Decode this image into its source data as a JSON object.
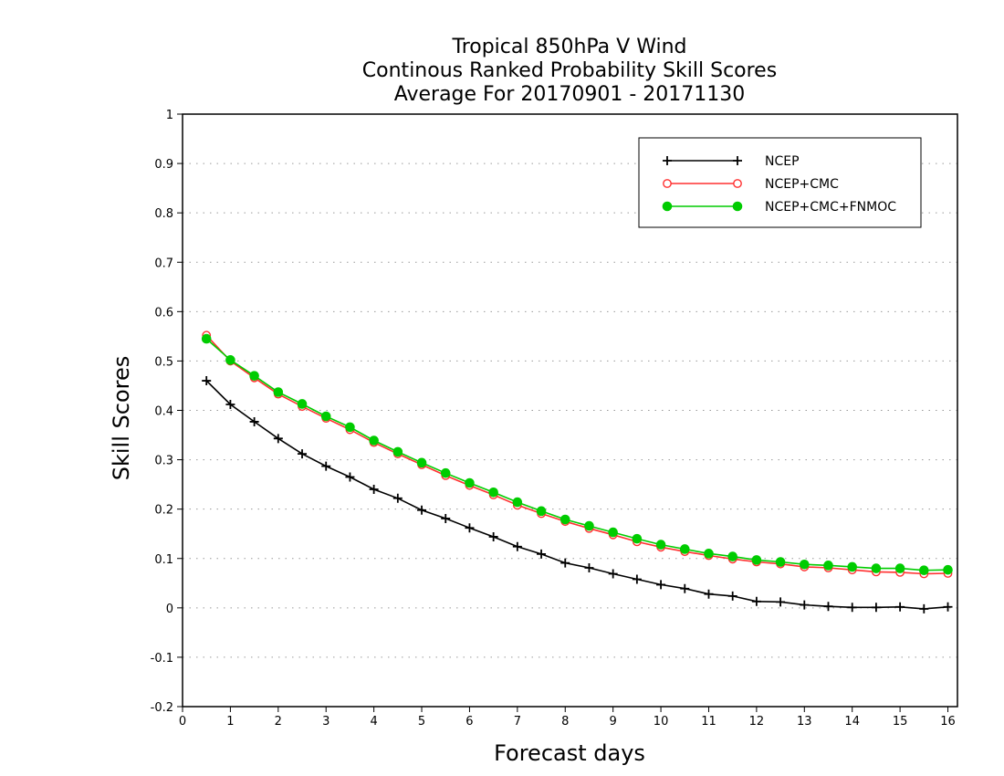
{
  "chart_data": {
    "type": "line",
    "title_lines": [
      "Tropical 850hPa V Wind",
      "Continous Ranked Probability Skill Scores",
      "Average For 20170901 - 20171130"
    ],
    "xlabel": "Forecast days",
    "ylabel": "Skill Scores",
    "xlim": [
      0,
      16.2
    ],
    "ylim": [
      -0.2,
      1
    ],
    "xticks": [
      0,
      1,
      2,
      3,
      4,
      5,
      6,
      7,
      8,
      9,
      10,
      11,
      12,
      13,
      14,
      15,
      16
    ],
    "xtick_labels": [
      "0",
      "1",
      "2",
      "3",
      "4",
      "5",
      "6",
      "7",
      "8",
      "9",
      "10",
      "11",
      "12",
      "13",
      "14",
      "15",
      "16"
    ],
    "yticks": [
      -0.2,
      -0.1,
      0,
      0.1,
      0.2,
      0.3,
      0.4,
      0.5,
      0.6,
      0.7,
      0.8,
      0.9,
      1
    ],
    "ytick_labels": [
      "-0.2",
      "-0.1",
      "0",
      "0.1",
      "0.2",
      "0.3",
      "0.4",
      "0.5",
      "0.6",
      "0.7",
      "0.8",
      "0.9",
      "1"
    ],
    "grid": true,
    "legend_position": "top-right",
    "x": [
      0.5,
      1,
      1.5,
      2,
      2.5,
      3,
      3.5,
      4,
      4.5,
      5,
      5.5,
      6,
      6.5,
      7,
      7.5,
      8,
      8.5,
      9,
      9.5,
      10,
      10.5,
      11,
      11.5,
      12,
      12.5,
      13,
      13.5,
      14,
      14.5,
      15,
      15.5,
      16
    ],
    "series": [
      {
        "name": "NCEP",
        "color": "#000000",
        "marker": "plus",
        "values": [
          0.46,
          0.412,
          0.377,
          0.343,
          0.312,
          0.287,
          0.265,
          0.24,
          0.222,
          0.198,
          0.181,
          0.162,
          0.144,
          0.124,
          0.109,
          0.091,
          0.081,
          0.069,
          0.058,
          0.047,
          0.039,
          0.028,
          0.024,
          0.013,
          0.012,
          0.006,
          0.003,
          0.001,
          0.001,
          0.002,
          -0.002,
          0.002
        ]
      },
      {
        "name": "NCEP+CMC",
        "color": "#ff3030",
        "marker": "open-circle",
        "values": [
          0.552,
          0.5,
          0.466,
          0.433,
          0.408,
          0.384,
          0.361,
          0.335,
          0.312,
          0.29,
          0.268,
          0.248,
          0.229,
          0.208,
          0.191,
          0.175,
          0.161,
          0.148,
          0.134,
          0.123,
          0.114,
          0.106,
          0.099,
          0.093,
          0.089,
          0.083,
          0.081,
          0.077,
          0.073,
          0.072,
          0.069,
          0.07
        ]
      },
      {
        "name": "NCEP+CMC+FNMOC",
        "color": "#00cc00",
        "marker": "filled-circle",
        "values": [
          0.545,
          0.502,
          0.47,
          0.437,
          0.413,
          0.388,
          0.366,
          0.339,
          0.316,
          0.294,
          0.273,
          0.253,
          0.234,
          0.214,
          0.196,
          0.179,
          0.166,
          0.153,
          0.14,
          0.128,
          0.119,
          0.11,
          0.104,
          0.097,
          0.093,
          0.088,
          0.086,
          0.083,
          0.08,
          0.08,
          0.076,
          0.077
        ]
      }
    ]
  }
}
